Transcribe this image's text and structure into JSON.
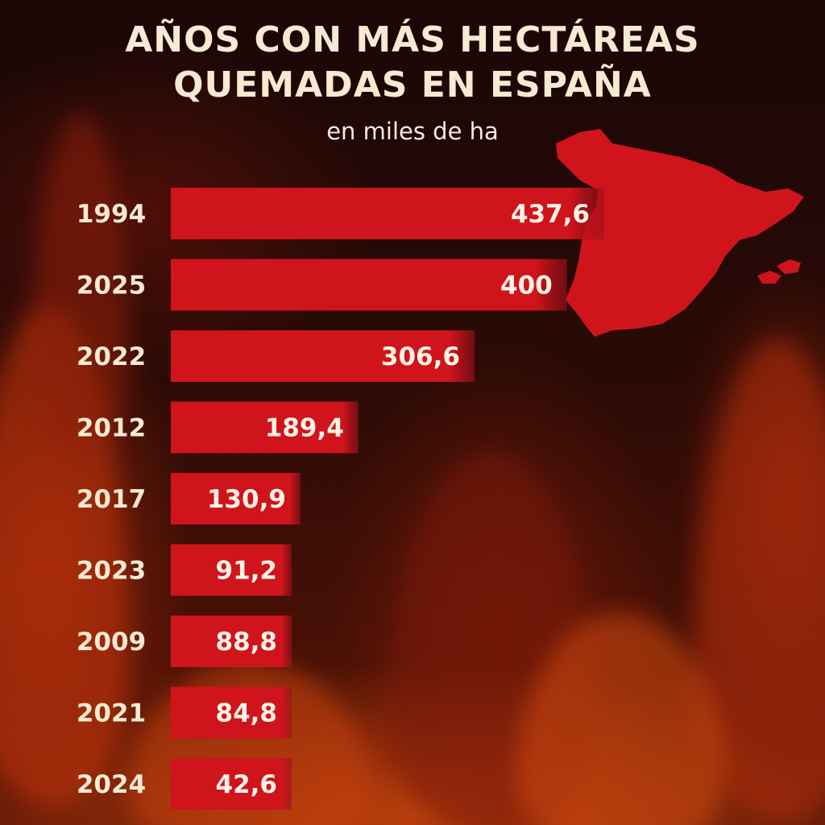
{
  "chart_data": {
    "type": "bar",
    "orientation": "horizontal",
    "title_lines": [
      "AÑOS CON MÁS HECTÁREAS",
      "QUEMADAS EN ESPAÑA"
    ],
    "subtitle": "en miles de ha",
    "categories": [
      "1994",
      "2025",
      "2022",
      "2012",
      "2017",
      "2023",
      "2009",
      "2021",
      "2024"
    ],
    "values": [
      437.6,
      400,
      306.6,
      189.4,
      130.9,
      91.2,
      88.8,
      84.8,
      42.6
    ],
    "value_labels": [
      "437,6",
      "400",
      "306,6",
      "189,4",
      "130,9",
      "91,2",
      "88,8",
      "84,8",
      "42,6"
    ],
    "sorted": "descending",
    "grid": false,
    "legend": "none",
    "colors": {
      "bar": "#d0141c",
      "bar_edge": "#c01018",
      "text": "#f6ead2",
      "map": "#d0141c"
    },
    "icons": [
      "spain-map-icon"
    ]
  }
}
